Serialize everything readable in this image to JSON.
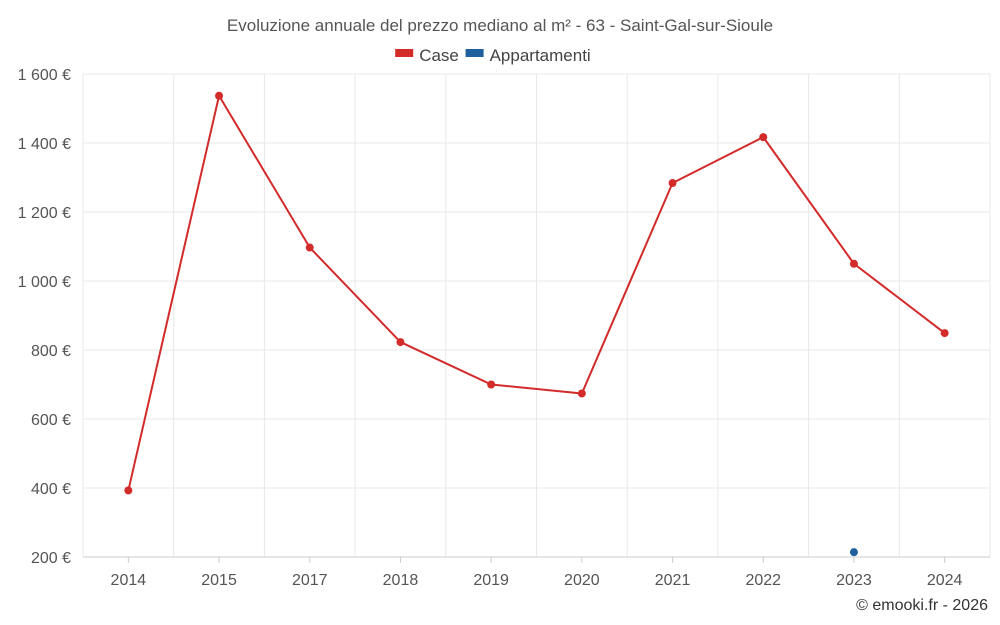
{
  "chart_data": {
    "type": "line",
    "title": "Evoluzione annuale del prezzo mediano al m² - 63 - Saint-Gal-sur-Sioule",
    "categories": [
      "2014",
      "2015",
      "2017",
      "2018",
      "2019",
      "2020",
      "2021",
      "2022",
      "2023",
      "2024"
    ],
    "series": [
      {
        "name": "Case",
        "color": "#d32a2a",
        "values": [
          393,
          1537,
          1097,
          823,
          700,
          674,
          1284,
          1417,
          1050,
          849
        ]
      },
      {
        "name": "Appartamenti",
        "color": "#1f5f9e",
        "values": [
          null,
          null,
          null,
          null,
          null,
          null,
          null,
          null,
          214,
          null
        ]
      }
    ],
    "ylim": [
      200,
      1600
    ],
    "yticks": [
      200,
      400,
      600,
      800,
      1000,
      1200,
      1400,
      1600
    ],
    "ytick_labels": [
      "200 €",
      "400 €",
      "600 €",
      "800 €",
      "1 000 €",
      "1 200 €",
      "1 400 €",
      "1 600 €"
    ],
    "xlabel": "",
    "ylabel": "",
    "legend_position": "top-center",
    "grid": true
  },
  "credit": "© emooki.fr - 2026"
}
